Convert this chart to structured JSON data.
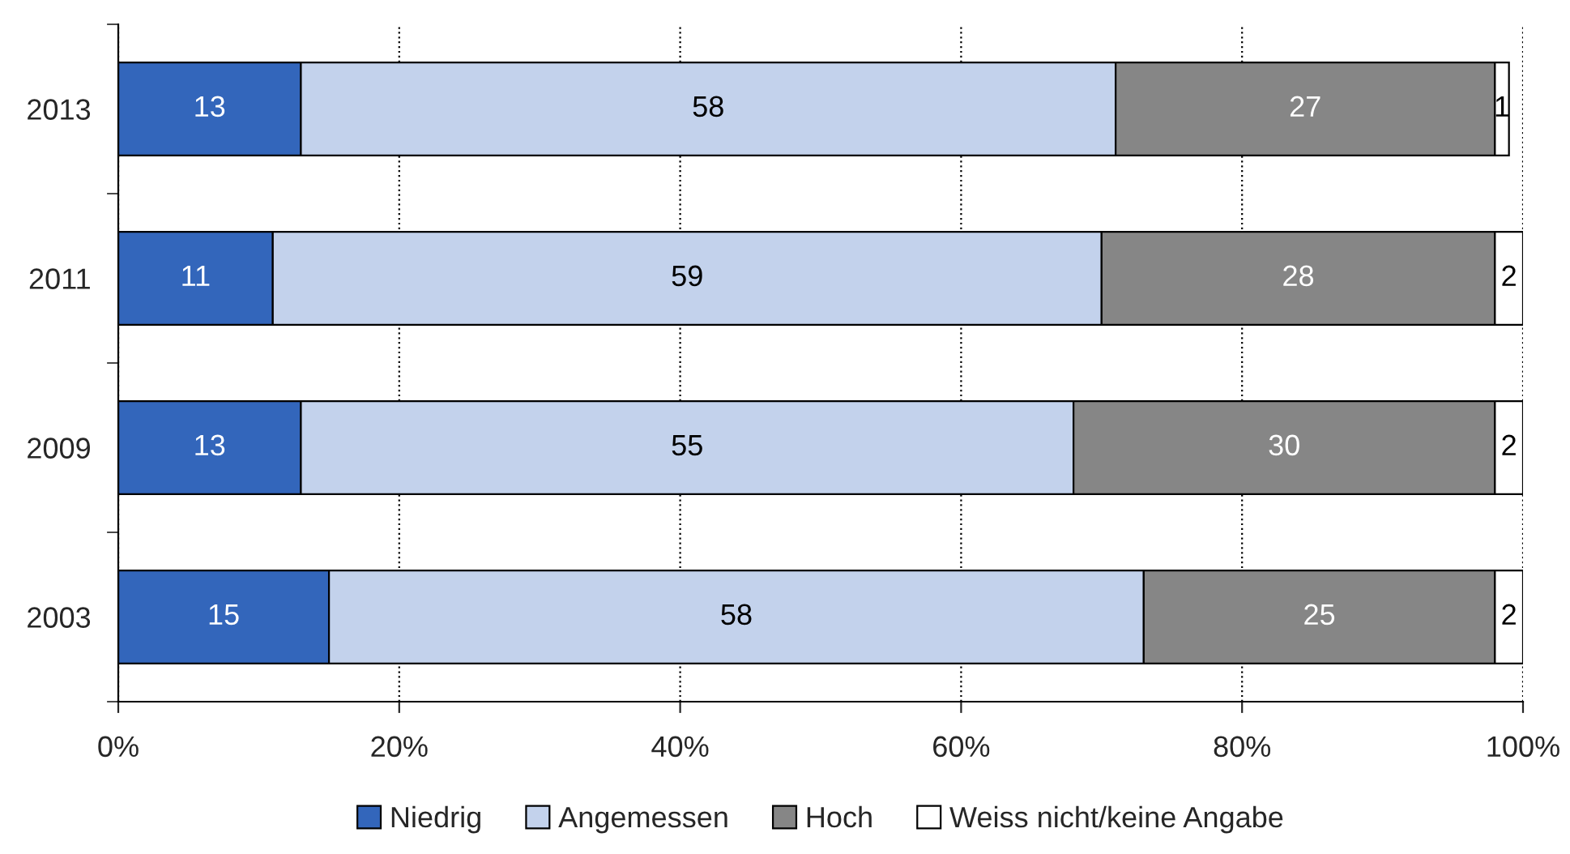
{
  "chart_data": {
    "type": "bar",
    "orientation": "horizontal",
    "stacked": true,
    "categories": [
      "2013",
      "2011",
      "2009",
      "2003"
    ],
    "series": [
      {
        "name": "Niedrig",
        "color": "#3366bb",
        "values": [
          13,
          11,
          13,
          15
        ]
      },
      {
        "name": "Angemessen",
        "color": "#c3d2ec",
        "values": [
          58,
          59,
          55,
          58
        ]
      },
      {
        "name": "Hoch",
        "color": "#868686",
        "values": [
          27,
          28,
          30,
          25
        ]
      },
      {
        "name": "Weiss nicht/keine Angabe",
        "color": "#ffffff",
        "values": [
          1,
          2,
          2,
          2
        ]
      }
    ],
    "xlim": [
      0,
      100
    ],
    "xticks": [
      {
        "value": 0,
        "label": "0%"
      },
      {
        "value": 20,
        "label": "20%"
      },
      {
        "value": 40,
        "label": "40%"
      },
      {
        "value": 60,
        "label": "60%"
      },
      {
        "value": 80,
        "label": "80%"
      },
      {
        "value": 100,
        "label": "100%"
      }
    ],
    "grid": "x",
    "legend": "bottom",
    "data_labels": true
  }
}
